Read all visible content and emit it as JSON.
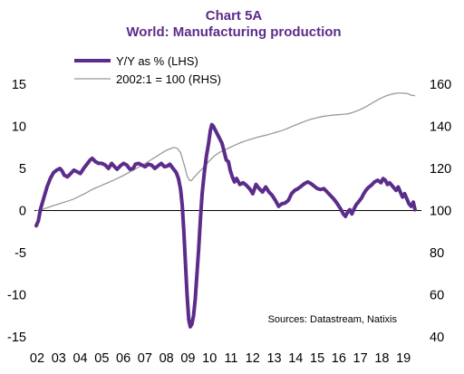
{
  "chart_data": {
    "type": "line",
    "title": "Chart 5A",
    "subtitle": "World: Manufacturing production",
    "source": "Sources: Datastream,  Natixis",
    "left_axis": {
      "min": -15,
      "max": 15,
      "ticks": [
        "15",
        "10",
        "5",
        "0",
        "-5",
        "-10",
        "-15"
      ]
    },
    "right_axis": {
      "min": 40,
      "max": 160,
      "ticks": [
        "160",
        "140",
        "120",
        "100",
        "80",
        "60",
        "40"
      ]
    },
    "x_axis": {
      "min": 2002,
      "max": 2019.75,
      "tick_labels": [
        "02",
        "03",
        "04",
        "05",
        "06",
        "07",
        "08",
        "09",
        "10",
        "11",
        "12",
        "13",
        "14",
        "15",
        "16",
        "17",
        "18",
        "19"
      ]
    },
    "zero_line": true,
    "series": [
      {
        "name": "Y/Y as % (LHS)",
        "axis": "left",
        "color": "#5b2c8a",
        "points": [
          [
            2002.0,
            -1.8
          ],
          [
            2002.1,
            -1.2
          ],
          [
            2002.2,
            0.2
          ],
          [
            2002.35,
            1.5
          ],
          [
            2002.5,
            2.8
          ],
          [
            2002.65,
            3.8
          ],
          [
            2002.8,
            4.5
          ],
          [
            2002.95,
            4.8
          ],
          [
            2003.1,
            5.0
          ],
          [
            2003.2,
            4.7
          ],
          [
            2003.3,
            4.2
          ],
          [
            2003.45,
            4.0
          ],
          [
            2003.6,
            4.4
          ],
          [
            2003.75,
            4.8
          ],
          [
            2003.9,
            4.6
          ],
          [
            2004.05,
            4.4
          ],
          [
            2004.2,
            5.0
          ],
          [
            2004.35,
            5.5
          ],
          [
            2004.5,
            6.0
          ],
          [
            2004.6,
            6.2
          ],
          [
            2004.75,
            5.8
          ],
          [
            2004.9,
            5.6
          ],
          [
            2005.05,
            5.6
          ],
          [
            2005.2,
            5.4
          ],
          [
            2005.35,
            5.0
          ],
          [
            2005.5,
            5.6
          ],
          [
            2005.6,
            5.3
          ],
          [
            2005.75,
            4.9
          ],
          [
            2005.9,
            5.3
          ],
          [
            2006.05,
            5.6
          ],
          [
            2006.2,
            5.4
          ],
          [
            2006.35,
            4.9
          ],
          [
            2006.5,
            5.0
          ],
          [
            2006.6,
            5.5
          ],
          [
            2006.75,
            5.6
          ],
          [
            2006.9,
            5.4
          ],
          [
            2007.05,
            5.2
          ],
          [
            2007.2,
            5.5
          ],
          [
            2007.35,
            5.4
          ],
          [
            2007.5,
            5.0
          ],
          [
            2007.65,
            5.3
          ],
          [
            2007.8,
            5.6
          ],
          [
            2007.95,
            5.2
          ],
          [
            2008.1,
            5.3
          ],
          [
            2008.2,
            5.5
          ],
          [
            2008.35,
            5.0
          ],
          [
            2008.5,
            4.5
          ],
          [
            2008.6,
            3.8
          ],
          [
            2008.7,
            2.5
          ],
          [
            2008.78,
            0.5
          ],
          [
            2008.85,
            -2.5
          ],
          [
            2008.92,
            -6.0
          ],
          [
            2009.0,
            -10.0
          ],
          [
            2009.08,
            -13.0
          ],
          [
            2009.15,
            -13.8
          ],
          [
            2009.22,
            -13.5
          ],
          [
            2009.3,
            -12.5
          ],
          [
            2009.38,
            -10.5
          ],
          [
            2009.46,
            -7.5
          ],
          [
            2009.54,
            -4.5
          ],
          [
            2009.62,
            -1.0
          ],
          [
            2009.7,
            2.0
          ],
          [
            2009.8,
            4.5
          ],
          [
            2009.9,
            6.5
          ],
          [
            2010.0,
            8.0
          ],
          [
            2010.08,
            9.5
          ],
          [
            2010.15,
            10.2
          ],
          [
            2010.22,
            10.0
          ],
          [
            2010.32,
            9.5
          ],
          [
            2010.42,
            9.0
          ],
          [
            2010.52,
            8.5
          ],
          [
            2010.62,
            8.0
          ],
          [
            2010.72,
            7.0
          ],
          [
            2010.82,
            6.0
          ],
          [
            2010.92,
            5.8
          ],
          [
            2011.0,
            4.8
          ],
          [
            2011.1,
            4.0
          ],
          [
            2011.2,
            3.4
          ],
          [
            2011.3,
            3.8
          ],
          [
            2011.45,
            3.1
          ],
          [
            2011.6,
            3.3
          ],
          [
            2011.75,
            3.0
          ],
          [
            2011.9,
            2.6
          ],
          [
            2012.05,
            2.0
          ],
          [
            2012.2,
            3.1
          ],
          [
            2012.35,
            2.6
          ],
          [
            2012.5,
            2.2
          ],
          [
            2012.65,
            2.8
          ],
          [
            2012.8,
            2.2
          ],
          [
            2012.95,
            1.8
          ],
          [
            2013.1,
            1.2
          ],
          [
            2013.25,
            0.5
          ],
          [
            2013.4,
            0.8
          ],
          [
            2013.55,
            0.9
          ],
          [
            2013.7,
            1.2
          ],
          [
            2013.85,
            2.0
          ],
          [
            2014.0,
            2.4
          ],
          [
            2014.15,
            2.6
          ],
          [
            2014.3,
            2.9
          ],
          [
            2014.45,
            3.2
          ],
          [
            2014.6,
            3.4
          ],
          [
            2014.75,
            3.2
          ],
          [
            2014.9,
            2.9
          ],
          [
            2015.05,
            2.6
          ],
          [
            2015.2,
            2.5
          ],
          [
            2015.35,
            2.6
          ],
          [
            2015.5,
            2.2
          ],
          [
            2015.65,
            1.8
          ],
          [
            2015.8,
            1.4
          ],
          [
            2015.95,
            0.9
          ],
          [
            2016.05,
            0.5
          ],
          [
            2016.15,
            0.1
          ],
          [
            2016.25,
            -0.4
          ],
          [
            2016.35,
            -0.7
          ],
          [
            2016.45,
            -0.2
          ],
          [
            2016.55,
            0.1
          ],
          [
            2016.65,
            -0.4
          ],
          [
            2016.75,
            0.2
          ],
          [
            2016.85,
            0.7
          ],
          [
            2016.95,
            1.0
          ],
          [
            2017.1,
            1.5
          ],
          [
            2017.2,
            2.0
          ],
          [
            2017.3,
            2.4
          ],
          [
            2017.4,
            2.7
          ],
          [
            2017.55,
            3.0
          ],
          [
            2017.7,
            3.4
          ],
          [
            2017.85,
            3.6
          ],
          [
            2018.0,
            3.3
          ],
          [
            2018.1,
            3.8
          ],
          [
            2018.2,
            3.6
          ],
          [
            2018.3,
            3.1
          ],
          [
            2018.4,
            3.3
          ],
          [
            2018.5,
            3.0
          ],
          [
            2018.6,
            2.7
          ],
          [
            2018.7,
            2.4
          ],
          [
            2018.8,
            2.8
          ],
          [
            2018.9,
            2.2
          ],
          [
            2019.0,
            1.6
          ],
          [
            2019.1,
            2.0
          ],
          [
            2019.2,
            1.4
          ],
          [
            2019.3,
            0.8
          ],
          [
            2019.4,
            0.5
          ],
          [
            2019.5,
            1.0
          ],
          [
            2019.58,
            0.1
          ]
        ]
      },
      {
        "name": "2002:1 = 100 (RHS)",
        "axis": "right",
        "color": "#999999",
        "points": [
          [
            2002.0,
            100.0
          ],
          [
            2002.25,
            100.5
          ],
          [
            2002.5,
            101.3
          ],
          [
            2002.75,
            102.2
          ],
          [
            2003.0,
            103.0
          ],
          [
            2003.25,
            103.8
          ],
          [
            2003.5,
            104.6
          ],
          [
            2003.75,
            105.5
          ],
          [
            2004.0,
            106.8
          ],
          [
            2004.25,
            108.0
          ],
          [
            2004.5,
            109.5
          ],
          [
            2004.75,
            110.7
          ],
          [
            2005.0,
            111.8
          ],
          [
            2005.25,
            112.9
          ],
          [
            2005.5,
            114.0
          ],
          [
            2005.75,
            115.2
          ],
          [
            2006.0,
            116.4
          ],
          [
            2006.25,
            117.8
          ],
          [
            2006.5,
            119.2
          ],
          [
            2006.75,
            120.6
          ],
          [
            2007.0,
            122.0
          ],
          [
            2007.25,
            123.6
          ],
          [
            2007.5,
            125.2
          ],
          [
            2007.75,
            126.8
          ],
          [
            2008.0,
            128.4
          ],
          [
            2008.25,
            129.5
          ],
          [
            2008.4,
            130.0
          ],
          [
            2008.55,
            129.5
          ],
          [
            2008.7,
            127.5
          ],
          [
            2008.8,
            124.0
          ],
          [
            2008.9,
            120.5
          ],
          [
            2009.0,
            116.5
          ],
          [
            2009.1,
            114.5
          ],
          [
            2009.2,
            114.2
          ],
          [
            2009.3,
            115.5
          ],
          [
            2009.45,
            117.2
          ],
          [
            2009.6,
            118.8
          ],
          [
            2009.8,
            120.8
          ],
          [
            2010.0,
            123.2
          ],
          [
            2010.25,
            125.8
          ],
          [
            2010.5,
            127.6
          ],
          [
            2010.75,
            128.8
          ],
          [
            2011.0,
            130.0
          ],
          [
            2011.25,
            131.2
          ],
          [
            2011.5,
            132.3
          ],
          [
            2011.75,
            133.2
          ],
          [
            2012.0,
            134.0
          ],
          [
            2012.25,
            134.8
          ],
          [
            2012.5,
            135.4
          ],
          [
            2012.75,
            136.0
          ],
          [
            2013.0,
            136.8
          ],
          [
            2013.25,
            137.5
          ],
          [
            2013.5,
            138.3
          ],
          [
            2013.75,
            139.4
          ],
          [
            2014.0,
            140.5
          ],
          [
            2014.25,
            141.5
          ],
          [
            2014.5,
            142.5
          ],
          [
            2014.75,
            143.4
          ],
          [
            2015.0,
            144.0
          ],
          [
            2015.25,
            144.6
          ],
          [
            2015.5,
            145.0
          ],
          [
            2015.75,
            145.3
          ],
          [
            2016.0,
            145.5
          ],
          [
            2016.25,
            145.7
          ],
          [
            2016.5,
            146.0
          ],
          [
            2016.75,
            146.8
          ],
          [
            2017.0,
            147.8
          ],
          [
            2017.25,
            149.0
          ],
          [
            2017.5,
            150.5
          ],
          [
            2017.75,
            152.0
          ],
          [
            2018.0,
            153.4
          ],
          [
            2018.25,
            154.5
          ],
          [
            2018.5,
            155.3
          ],
          [
            2018.75,
            155.8
          ],
          [
            2019.0,
            155.8
          ],
          [
            2019.25,
            155.5
          ],
          [
            2019.4,
            154.8
          ],
          [
            2019.58,
            154.5
          ]
        ]
      }
    ]
  }
}
